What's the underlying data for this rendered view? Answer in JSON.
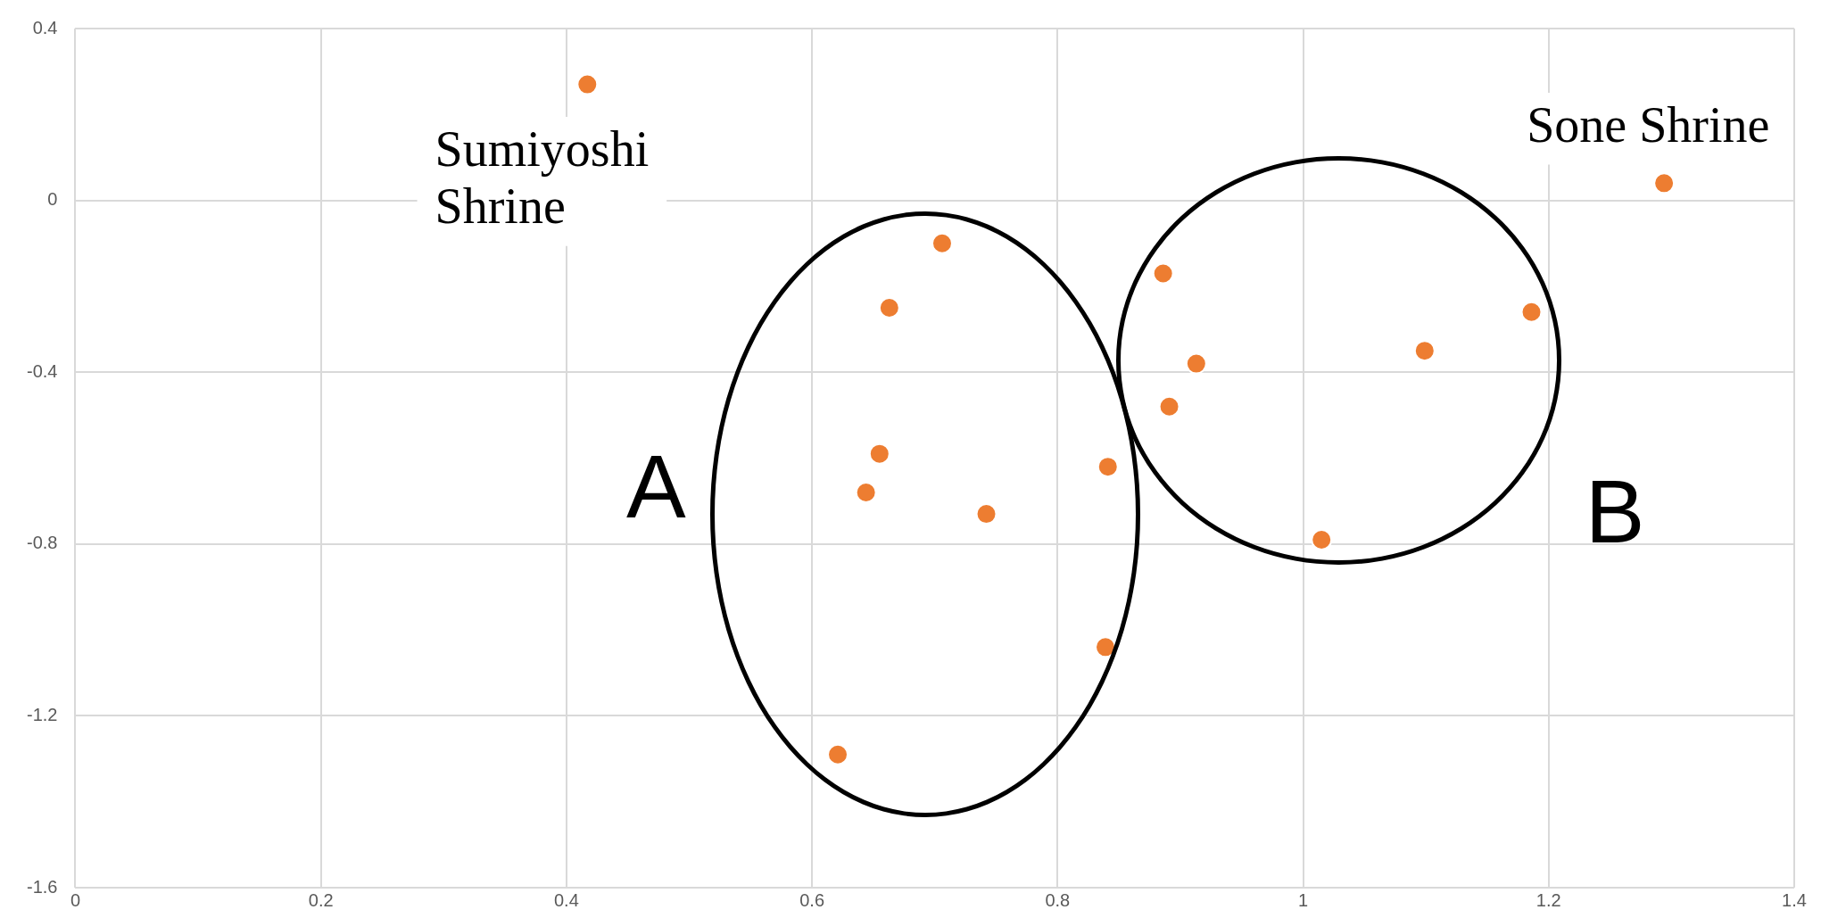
{
  "chart_data": {
    "type": "scatter",
    "x": [
      0.417,
      0.706,
      0.663,
      0.655,
      0.644,
      0.742,
      0.841,
      0.839,
      0.621,
      0.886,
      0.913,
      0.891,
      1.015,
      1.099,
      1.186,
      1.294
    ],
    "values": [
      0.27,
      -0.1,
      -0.25,
      -0.59,
      -0.68,
      -0.73,
      -0.62,
      -1.04,
      -1.29,
      -0.17,
      -0.38,
      -0.48,
      -0.79,
      -0.35,
      -0.26,
      0.04
    ],
    "color": "#ed7d31",
    "marker": "circle",
    "xlim": [
      0,
      1.4
    ],
    "ylim": [
      -1.6,
      0.4
    ],
    "xticks": [
      0,
      0.2,
      0.4,
      0.6,
      0.8,
      1,
      1.2,
      1.4
    ],
    "yticks": [
      -1.6,
      -1.2,
      -0.8,
      -0.4,
      0,
      0.4
    ],
    "grid": true,
    "legend": false,
    "annotations": [
      "Sumiyoshi\nShrine",
      "Sone Shrine",
      "A",
      "B"
    ]
  }
}
